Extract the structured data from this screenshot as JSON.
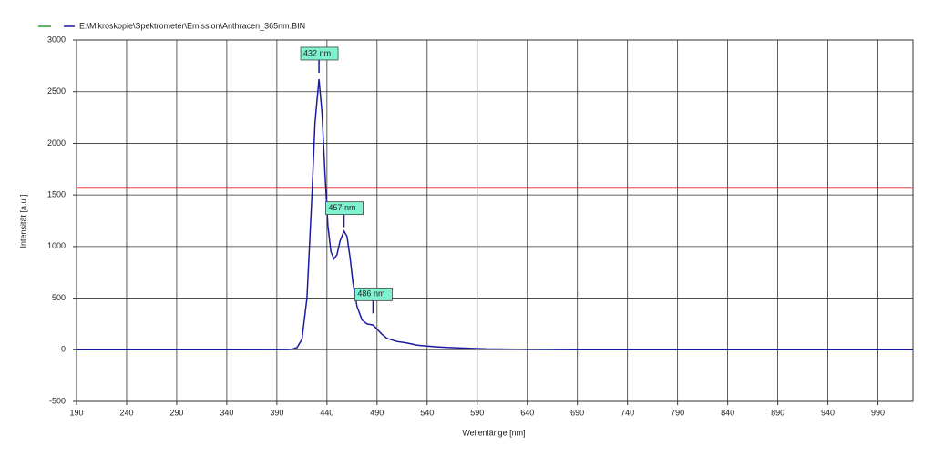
{
  "chart_data": {
    "type": "line",
    "xlabel": "Wellenlänge [nm]",
    "ylabel": "Intensität [a.u.]",
    "xlim": [
      190,
      1025
    ],
    "ylim": [
      -500,
      3000
    ],
    "xticks": [
      190,
      240,
      290,
      340,
      390,
      440,
      490,
      540,
      590,
      640,
      690,
      740,
      790,
      840,
      890,
      940,
      990
    ],
    "yticks": [
      -500,
      0,
      500,
      1000,
      1500,
      2000,
      2500,
      3000
    ],
    "grid": true,
    "hlines": [
      {
        "value": 1565,
        "color": "#e8403c"
      }
    ],
    "series": [
      {
        "name": "E:\\Mikroskopie\\Spektrometer\\Emission\\Anthracen_365nm.BIN",
        "color": "#1a1aa0",
        "x": [
          190,
          250,
          300,
          350,
          400,
          405,
          410,
          415,
          420,
          425,
          428,
          432,
          435,
          438,
          441,
          444,
          447,
          450,
          453,
          457,
          460,
          463,
          466,
          470,
          475,
          480,
          486,
          490,
          495,
          500,
          510,
          520,
          530,
          540,
          550,
          560,
          580,
          600,
          640,
          700,
          800,
          900,
          1025
        ],
        "values": [
          0,
          0,
          0,
          0,
          2,
          5,
          20,
          100,
          500,
          1500,
          2200,
          2620,
          2300,
          1700,
          1200,
          950,
          880,
          920,
          1050,
          1150,
          1100,
          900,
          650,
          420,
          290,
          250,
          240,
          200,
          150,
          110,
          80,
          65,
          45,
          35,
          28,
          22,
          15,
          8,
          3,
          0,
          0,
          0,
          0
        ]
      }
    ],
    "annotations": [
      {
        "x": 432,
        "y": 2683,
        "label": "432 nm"
      },
      {
        "x": 457,
        "y": 1187,
        "label": "457 nm"
      },
      {
        "x": 486,
        "y": 352,
        "label": "486 nm"
      }
    ]
  }
}
